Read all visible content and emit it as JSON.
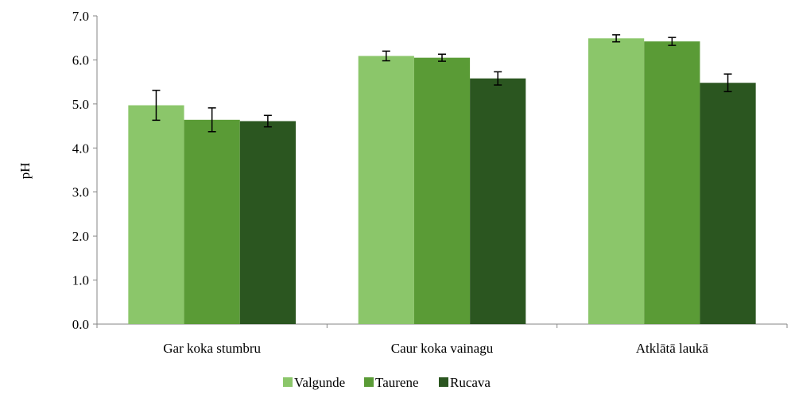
{
  "chart_data": {
    "type": "bar",
    "title": "",
    "xlabel": "",
    "ylabel": "pH",
    "ylim": [
      0,
      7
    ],
    "yticks": [
      "0.0",
      "1.0",
      "2.0",
      "3.0",
      "4.0",
      "5.0",
      "6.0",
      "7.0"
    ],
    "grid": false,
    "legend_position": "bottom",
    "categories": [
      "Gar koka stumbru",
      "Caur koka vainagu",
      "Atklātā laukā"
    ],
    "series": [
      {
        "name": "Valgunde",
        "color": "#8bc66a",
        "values": [
          4.97,
          6.09,
          6.49
        ],
        "errors": [
          0.34,
          0.11,
          0.08
        ]
      },
      {
        "name": "Taurene",
        "color": "#5a9b36",
        "values": [
          4.64,
          6.05,
          6.42
        ],
        "errors": [
          0.27,
          0.08,
          0.09
        ]
      },
      {
        "name": "Rucava",
        "color": "#2b5620",
        "values": [
          4.61,
          5.58,
          5.48
        ],
        "errors": [
          0.13,
          0.15,
          0.2
        ]
      }
    ]
  }
}
